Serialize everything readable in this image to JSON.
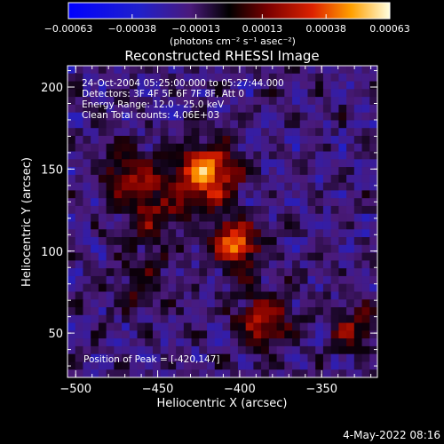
{
  "chart_data": {
    "type": "heatmap",
    "title": "Reconstructed RHESSI Image",
    "xlabel": "Heliocentric X (arcsec)",
    "ylabel": "Heliocentric Y (arcsec)",
    "xlim": [
      -505,
      -316
    ],
    "ylim": [
      23,
      213
    ],
    "xticks": [
      -500,
      -450,
      -400,
      -350
    ],
    "yticks": [
      50,
      100,
      150,
      200
    ],
    "xtick_labels": [
      "−500",
      "−450",
      "−400",
      "−350"
    ],
    "ytick_labels": [
      "50",
      "100",
      "150",
      "200"
    ],
    "colorbar": {
      "range": [
        -0.00063,
        0.00063
      ],
      "ticks": [
        -0.00063,
        -0.00038,
        -0.00013,
        0.00013,
        0.00038,
        0.00063
      ],
      "tick_labels": [
        "−0.00063",
        "−0.00038",
        "−0.00013",
        "0.00013",
        "0.00038",
        "0.00063"
      ],
      "unit_label": "(photons cm⁻² s⁻¹ asec⁻²)"
    },
    "annotations": [
      "24-Oct-2004 05:25:00.000 to 05:27:44.000",
      "Detectors: 3F 4F 5F 6F 7F 8F, Att 0",
      "Energy Range: 12.0 - 25.0 keV",
      "Clean    Total counts: 4.06E+03"
    ],
    "peak_label": "Position of Peak = [-420,147]",
    "sources": [
      {
        "x": -420,
        "y": 147,
        "amp": 0.00063,
        "sigma": 12
      },
      {
        "x": -403,
        "y": 105,
        "amp": 0.00056,
        "sigma": 10
      },
      {
        "x": -465,
        "y": 145,
        "amp": 0.00034,
        "sigma": 12
      },
      {
        "x": -385,
        "y": 58,
        "amp": 0.00036,
        "sigma": 12
      },
      {
        "x": -450,
        "y": 120,
        "amp": 0.00024,
        "sigma": 12
      },
      {
        "x": -330,
        "y": 52,
        "amp": 0.00026,
        "sigma": 10
      },
      {
        "x": -460,
        "y": 80,
        "amp": 0.00018,
        "sigma": 12
      }
    ]
  },
  "footer_date": "4-May-2022 08:16"
}
